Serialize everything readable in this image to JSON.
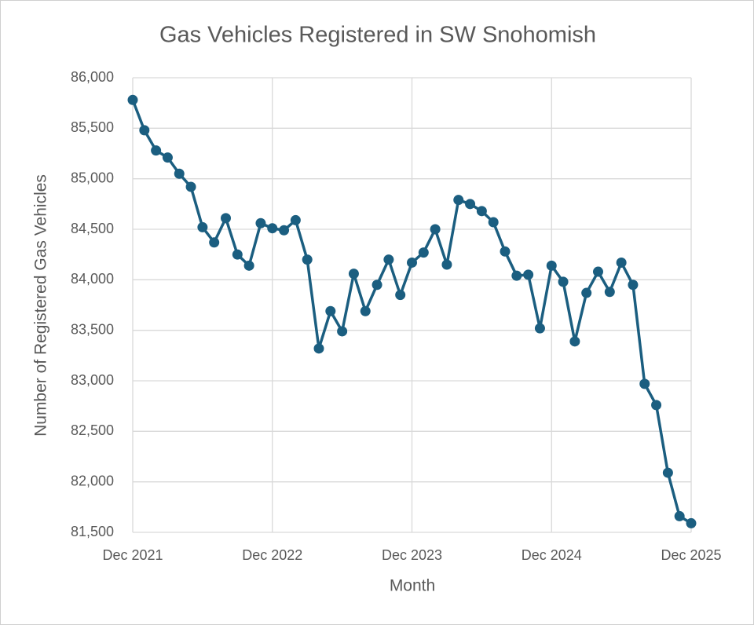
{
  "chart_data": {
    "type": "line",
    "title": "Gas Vehicles Registered in SW Snohomish",
    "x_label": "Month",
    "y_label": "Number of Registered Gas Vehicles",
    "categories": [
      "Dec 2021",
      null,
      null,
      null,
      null,
      null,
      null,
      null,
      null,
      null,
      null,
      null,
      "Dec 2022",
      null,
      null,
      null,
      null,
      null,
      null,
      null,
      null,
      null,
      null,
      null,
      "Dec 2023",
      null,
      null,
      null,
      null,
      null,
      null,
      null,
      null,
      null,
      null,
      null,
      "Dec 2024",
      null,
      null,
      null,
      null,
      null,
      null,
      null,
      null,
      null,
      null,
      null,
      "Dec 2025"
    ],
    "values": [
      85780,
      85480,
      85280,
      85210,
      85050,
      84920,
      84520,
      84370,
      84610,
      84250,
      84140,
      84560,
      84510,
      84490,
      84590,
      84200,
      83320,
      83690,
      83490,
      84060,
      83690,
      83950,
      84200,
      83850,
      84170,
      84270,
      84500,
      84150,
      84790,
      84750,
      84680,
      84570,
      84280,
      84040,
      84050,
      83520,
      84140,
      83980,
      83390,
      83870,
      84080,
      83880,
      84170,
      83950,
      82970,
      82760,
      82090,
      81660,
      81590
    ],
    "color": "#1b5e80",
    "ylim": [
      81500,
      86000
    ],
    "yticks": [
      {
        "value": 81500,
        "label": "81,500"
      },
      {
        "value": 82000,
        "label": "82,000"
      },
      {
        "value": 82500,
        "label": "82,500"
      },
      {
        "value": 83000,
        "label": "83,000"
      },
      {
        "value": 83500,
        "label": "83,500"
      },
      {
        "value": 84000,
        "label": "84,000"
      },
      {
        "value": 84500,
        "label": "84,500"
      },
      {
        "value": 85000,
        "label": "85,000"
      },
      {
        "value": 85500,
        "label": "85,500"
      },
      {
        "value": 86000,
        "label": "86,000"
      }
    ],
    "grid": true
  }
}
